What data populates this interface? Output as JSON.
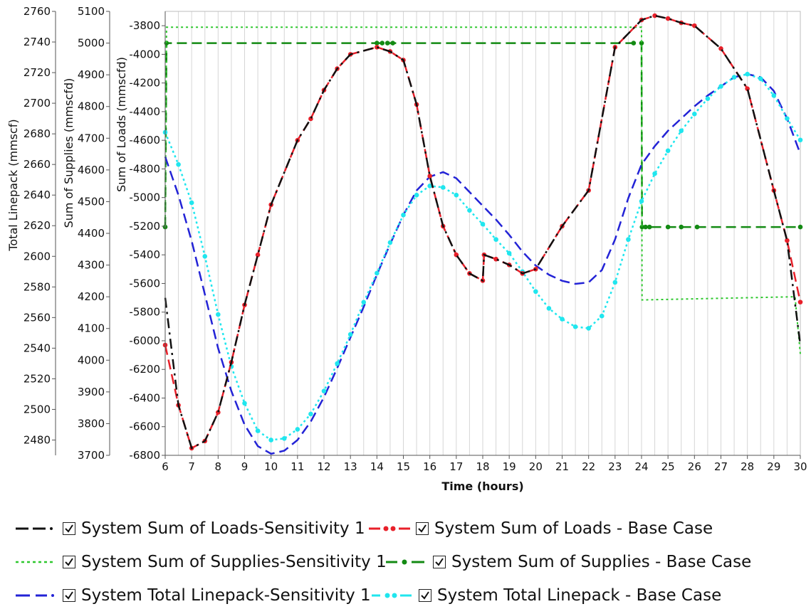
{
  "chart_data": {
    "type": "line",
    "xlabel": "Time (hours)",
    "xlim": [
      6,
      30
    ],
    "x_ticks": [
      6,
      7,
      8,
      9,
      10,
      11,
      12,
      13,
      14,
      15,
      16,
      17,
      18,
      19,
      20,
      21,
      22,
      23,
      24,
      25,
      26,
      27,
      28,
      29,
      30
    ],
    "axes": {
      "linepack": {
        "label": "Total Linepack (mmscf)",
        "ylim": [
          2470,
          2760
        ],
        "ticks": [
          2480,
          2500,
          2520,
          2540,
          2560,
          2580,
          2600,
          2620,
          2640,
          2660,
          2680,
          2700,
          2720,
          2740,
          2760
        ]
      },
      "supplies": {
        "label": "Sum of Supplies (mmscfd)",
        "ylim": [
          3700,
          5100
        ],
        "ticks": [
          3700,
          3800,
          3900,
          4000,
          4100,
          4200,
          4300,
          4400,
          4500,
          4600,
          4700,
          4800,
          4900,
          5000,
          5100
        ]
      },
      "loads": {
        "label": "Sum of Loads (mmscfd)",
        "ylim": [
          -6800,
          -3700
        ],
        "ticks": [
          -6800,
          -6600,
          -6400,
          -6200,
          -6000,
          -5800,
          -5600,
          -5400,
          -5200,
          -5000,
          -4800,
          -4600,
          -4400,
          -4200,
          -4000,
          -3800
        ]
      }
    },
    "grid": "vertical",
    "legend_position": "bottom",
    "series": [
      {
        "name": "System Sum of Loads-Sensitivity 1",
        "axis": "loads",
        "color": "#111111",
        "style": "dashdot",
        "markers": false,
        "x": [
          6,
          6.5,
          7,
          7.5,
          8,
          8.5,
          9,
          9.5,
          10,
          11,
          11.5,
          12,
          12.5,
          13,
          14,
          14.5,
          15,
          15.5,
          16,
          16.5,
          17,
          17.5,
          18,
          18.05,
          18.5,
          19,
          19.5,
          20,
          21,
          22,
          23,
          24,
          24.5,
          25,
          25.5,
          26,
          27,
          28,
          29,
          29.5,
          30
        ],
        "y": [
          -5700,
          -6450,
          -6750,
          -6700,
          -6500,
          -6150,
          -5750,
          -5400,
          -5050,
          -4600,
          -4450,
          -4250,
          -4100,
          -4000,
          -3950,
          -3980,
          -4040,
          -4350,
          -4850,
          -5200,
          -5400,
          -5530,
          -5580,
          -5400,
          -5430,
          -5470,
          -5530,
          -5500,
          -5200,
          -4950,
          -3950,
          -3760,
          -3730,
          -3750,
          -3780,
          -3800,
          -3960,
          -4240,
          -4950,
          -5300,
          -6030
        ]
      },
      {
        "name": "System Sum of Loads - Base Case",
        "axis": "loads",
        "color": "#e8202a",
        "style": "dashed",
        "markers": true,
        "x": [
          6,
          6.5,
          7,
          7.5,
          8,
          8.5,
          9,
          9.5,
          10,
          11,
          11.5,
          12,
          12.5,
          13,
          14,
          14.5,
          15,
          15.5,
          16,
          16.5,
          17,
          17.5,
          18,
          18.05,
          18.5,
          19,
          19.5,
          20,
          21,
          22,
          23,
          24,
          24.5,
          25,
          25.5,
          26,
          27,
          28,
          29,
          29.5,
          30
        ],
        "y": [
          -6030,
          -6450,
          -6750,
          -6700,
          -6500,
          -6150,
          -5750,
          -5400,
          -5050,
          -4600,
          -4450,
          -4250,
          -4100,
          -4000,
          -3950,
          -3980,
          -4040,
          -4350,
          -4850,
          -5200,
          -5400,
          -5530,
          -5580,
          -5400,
          -5430,
          -5470,
          -5530,
          -5500,
          -5200,
          -4950,
          -3950,
          -3760,
          -3730,
          -3750,
          -3780,
          -3800,
          -3960,
          -4240,
          -4950,
          -5300,
          -5730
        ]
      },
      {
        "name": "System Sum of Supplies-Sensitivity 1",
        "axis": "supplies",
        "color": "#2ec82e",
        "style": "dotted",
        "markers": false,
        "x": [
          6,
          6.05,
          24,
          24.02,
          29.8,
          30
        ],
        "y": [
          4420,
          5050,
          5050,
          4190,
          4200,
          4020
        ]
      },
      {
        "name": "System Sum of Supplies - Base Case",
        "axis": "supplies",
        "color": "#138a13",
        "style": "dashed",
        "markers": true,
        "x": [
          6,
          6.05,
          14,
          14.2,
          14.4,
          14.6,
          23.7,
          24,
          24.02,
          24.15,
          24.3,
          25,
          25.5,
          26.1,
          30
        ],
        "y": [
          4420,
          5000,
          5000,
          5000,
          5000,
          5000,
          5000,
          5000,
          4420,
          4420,
          4420,
          4420,
          4420,
          4420,
          4420
        ]
      },
      {
        "name": "System Total Linepack-Sensitivity 1",
        "axis": "linepack",
        "color": "#2323d6",
        "style": "dashed",
        "markers": false,
        "x": [
          6,
          6.5,
          7,
          7.5,
          8,
          8.5,
          9,
          9.5,
          10,
          10.5,
          11,
          11.5,
          12,
          12.5,
          13,
          13.5,
          14,
          14.5,
          15,
          15.5,
          16,
          16.5,
          17,
          17.5,
          18,
          18.5,
          19,
          19.5,
          20,
          20.5,
          21,
          21.5,
          22,
          22.5,
          23,
          23.5,
          24,
          24.5,
          25,
          25.5,
          26,
          26.5,
          27,
          27.5,
          28,
          28.5,
          29,
          29.5,
          30
        ],
        "y": [
          2665,
          2640,
          2610,
          2575,
          2540,
          2512,
          2490,
          2476,
          2471,
          2473,
          2480,
          2492,
          2508,
          2527,
          2547,
          2567,
          2588,
          2608,
          2627,
          2643,
          2652,
          2655,
          2651,
          2642,
          2633,
          2624,
          2614,
          2603,
          2594,
          2588,
          2584,
          2582,
          2583,
          2591,
          2611,
          2638,
          2660,
          2672,
          2682,
          2690,
          2698,
          2705,
          2711,
          2717,
          2719,
          2717,
          2708,
          2690,
          2667
        ]
      },
      {
        "name": "System Total Linepack - Base Case",
        "axis": "linepack",
        "color": "#20e6ee",
        "style": "dotted",
        "markers": true,
        "x": [
          6,
          6.5,
          7,
          7.5,
          8,
          8.5,
          9,
          9.5,
          10,
          10.5,
          11,
          11.5,
          12,
          12.5,
          13,
          13.5,
          14,
          14.5,
          15,
          15.5,
          16,
          16.5,
          17,
          17.5,
          18,
          18.5,
          19,
          19.5,
          20,
          20.5,
          21,
          21.5,
          22,
          22.5,
          23,
          23.5,
          24,
          24.5,
          25,
          25.5,
          26,
          26.5,
          27,
          27.5,
          28,
          28.5,
          29,
          29.5,
          30
        ],
        "y": [
          2681,
          2660,
          2635,
          2600,
          2562,
          2528,
          2504,
          2486,
          2480,
          2481,
          2487,
          2497,
          2512,
          2530,
          2549,
          2570,
          2589,
          2609,
          2627,
          2640,
          2646,
          2645,
          2640,
          2630,
          2621,
          2611,
          2602,
          2590,
          2577,
          2566,
          2559,
          2554,
          2553,
          2561,
          2583,
          2611,
          2636,
          2654,
          2669,
          2682,
          2693,
          2703,
          2711,
          2717,
          2719,
          2716,
          2705,
          2690,
          2676
        ]
      }
    ]
  }
}
